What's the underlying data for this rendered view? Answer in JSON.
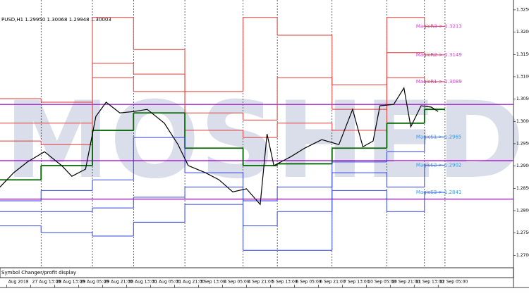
{
  "chart_data": {
    "type": "line",
    "title": "PUSD,H1 1.29950 1.30068 1.29948 1.30003",
    "watermark": "MOSHED",
    "panel_label": "Symbol Changer/profit display",
    "xlim": [
      0,
      150
    ],
    "ylim": [
      1.2672,
      1.3272
    ],
    "xticks": [
      {
        "value": 2,
        "label": "Aug 2018"
      },
      {
        "value": 9,
        "label": "27 Aug 13:00"
      },
      {
        "value": 16,
        "label": "28 Aug 13:00"
      },
      {
        "value": 23,
        "label": "29 Aug 05:00"
      },
      {
        "value": 30,
        "label": "29 Aug 21:00"
      },
      {
        "value": 37,
        "label": "30 Aug 13:00"
      },
      {
        "value": 44,
        "label": "31 Aug 05:00"
      },
      {
        "value": 51,
        "label": "31 Aug 21:00"
      },
      {
        "value": 58,
        "label": "3 Sep 13:00"
      },
      {
        "value": 65,
        "label": "4 Sep 05:00"
      },
      {
        "value": 72,
        "label": "4 Sep 21:00"
      },
      {
        "value": 79,
        "label": "5 Sep 13:00"
      },
      {
        "value": 86,
        "label": "6 Sep 05:00"
      },
      {
        "value": 93,
        "label": "6 Sep 21:00"
      },
      {
        "value": 100,
        "label": "7 Sep 13:00"
      },
      {
        "value": 107,
        "label": "10 Sep 05:00"
      },
      {
        "value": 114,
        "label": "10 Sep 21:00"
      },
      {
        "value": 121,
        "label": "11 Sep 13:00"
      },
      {
        "value": 128,
        "label": "12 Sep 05:00"
      }
    ],
    "yticks": [
      {
        "value": 1.27,
        "label": "1.2700"
      },
      {
        "value": 1.275,
        "label": "1.2750"
      },
      {
        "value": 1.28,
        "label": "1.2800"
      },
      {
        "value": 1.285,
        "label": "1.2850"
      },
      {
        "value": 1.29,
        "label": "1.2900"
      },
      {
        "value": 1.295,
        "label": "1.2950"
      },
      {
        "value": 1.3,
        "label": "1.3000"
      },
      {
        "value": 1.305,
        "label": "1.3050"
      },
      {
        "value": 1.31,
        "label": "1.3100"
      },
      {
        "value": 1.315,
        "label": "1.3150"
      },
      {
        "value": 1.32,
        "label": "1.3200"
      },
      {
        "value": 1.325,
        "label": "1.3250"
      }
    ],
    "price": {
      "color": "#000000",
      "x": [
        0,
        4,
        8,
        13,
        18,
        21,
        25,
        28,
        31,
        35,
        39,
        43,
        48,
        52,
        55,
        60,
        64,
        68,
        72,
        76,
        78,
        80,
        85,
        89,
        94,
        99,
        103,
        106,
        109,
        111,
        115,
        118,
        120,
        123,
        126,
        128
      ],
      "values": [
        1.2853,
        1.2885,
        1.2909,
        1.2932,
        1.2901,
        1.2877,
        1.2893,
        1.3011,
        1.3043,
        1.3019,
        1.3022,
        1.3027,
        1.2996,
        1.2948,
        1.2901,
        1.2885,
        1.2869,
        1.2842,
        1.2849,
        1.2814,
        1.2972,
        1.2901,
        1.2921,
        1.294,
        1.2959,
        1.2948,
        1.3027,
        1.2943,
        1.2956,
        1.3035,
        1.3038,
        1.3075,
        1.2988,
        1.3035,
        1.3032,
        1.3022
      ]
    },
    "levels": {
      "bounds": [
        0,
        12,
        27,
        39,
        54,
        71,
        81,
        97,
        113,
        124,
        130
      ],
      "lines": [
        {
          "color": "#e03a3a",
          "values": [
            1.3051,
            1.3043,
            1.3233,
            1.3161,
            1.3067,
            1.3233,
            1.3193,
            1.3082,
            1.3233,
            1.3213
          ]
        },
        {
          "color": "#e03a3a",
          "values": [
            1.2996,
            1.2996,
            1.313,
            1.3106,
            1.3019,
            1.3003,
            1.3098,
            1.3027,
            1.3154,
            1.3149
          ]
        },
        {
          "color": "#e03a3a",
          "values": [
            1.2956,
            1.2948,
            1.3098,
            1.3067,
            1.298,
            1.2964,
            1.2996,
            1.298,
            1.3098,
            1.3089
          ]
        },
        {
          "color": "#006400",
          "values": [
            1.2869,
            1.2901,
            1.298,
            1.3019,
            1.294,
            1.2901,
            1.2905,
            1.294,
            1.2996,
            1.3027
          ]
        },
        {
          "color": "#3344dd",
          "values": [
            1.2822,
            1.2845,
            1.2869,
            1.2964,
            1.2885,
            1.2822,
            1.2853,
            1.2909,
            1.2932,
            1.2965
          ]
        },
        {
          "color": "#3344dd",
          "values": [
            1.2798,
            1.2798,
            1.2806,
            1.283,
            1.2853,
            1.2766,
            1.2798,
            1.2885,
            1.2853,
            1.2902
          ]
        },
        {
          "color": "#3344dd",
          "values": [
            1.2766,
            1.2751,
            1.2743,
            1.2774,
            1.2814,
            1.2711,
            1.2711,
            1.2845,
            1.2798,
            1.2841
          ]
        }
      ]
    },
    "level_labels": [
      {
        "text": "MagicR3-> 1.3213",
        "color": "#d040d0"
      },
      {
        "text": "MagicR2-> 1.3149",
        "color": "#d040d0"
      },
      {
        "text": "MagicR1-> 1.3089",
        "color": "#d040d0"
      },
      null,
      {
        "text": "MagicS1-> 1.2965",
        "color": "#3399ee"
      },
      {
        "text": "MagicS2-> 1.2902",
        "color": "#3399ee"
      },
      {
        "text": "MagicS3-> 1.2841",
        "color": "#3399ee"
      }
    ],
    "hlines": {
      "color": "#9900cc",
      "values": [
        1.3038,
        1.2912,
        1.2826
      ]
    }
  }
}
